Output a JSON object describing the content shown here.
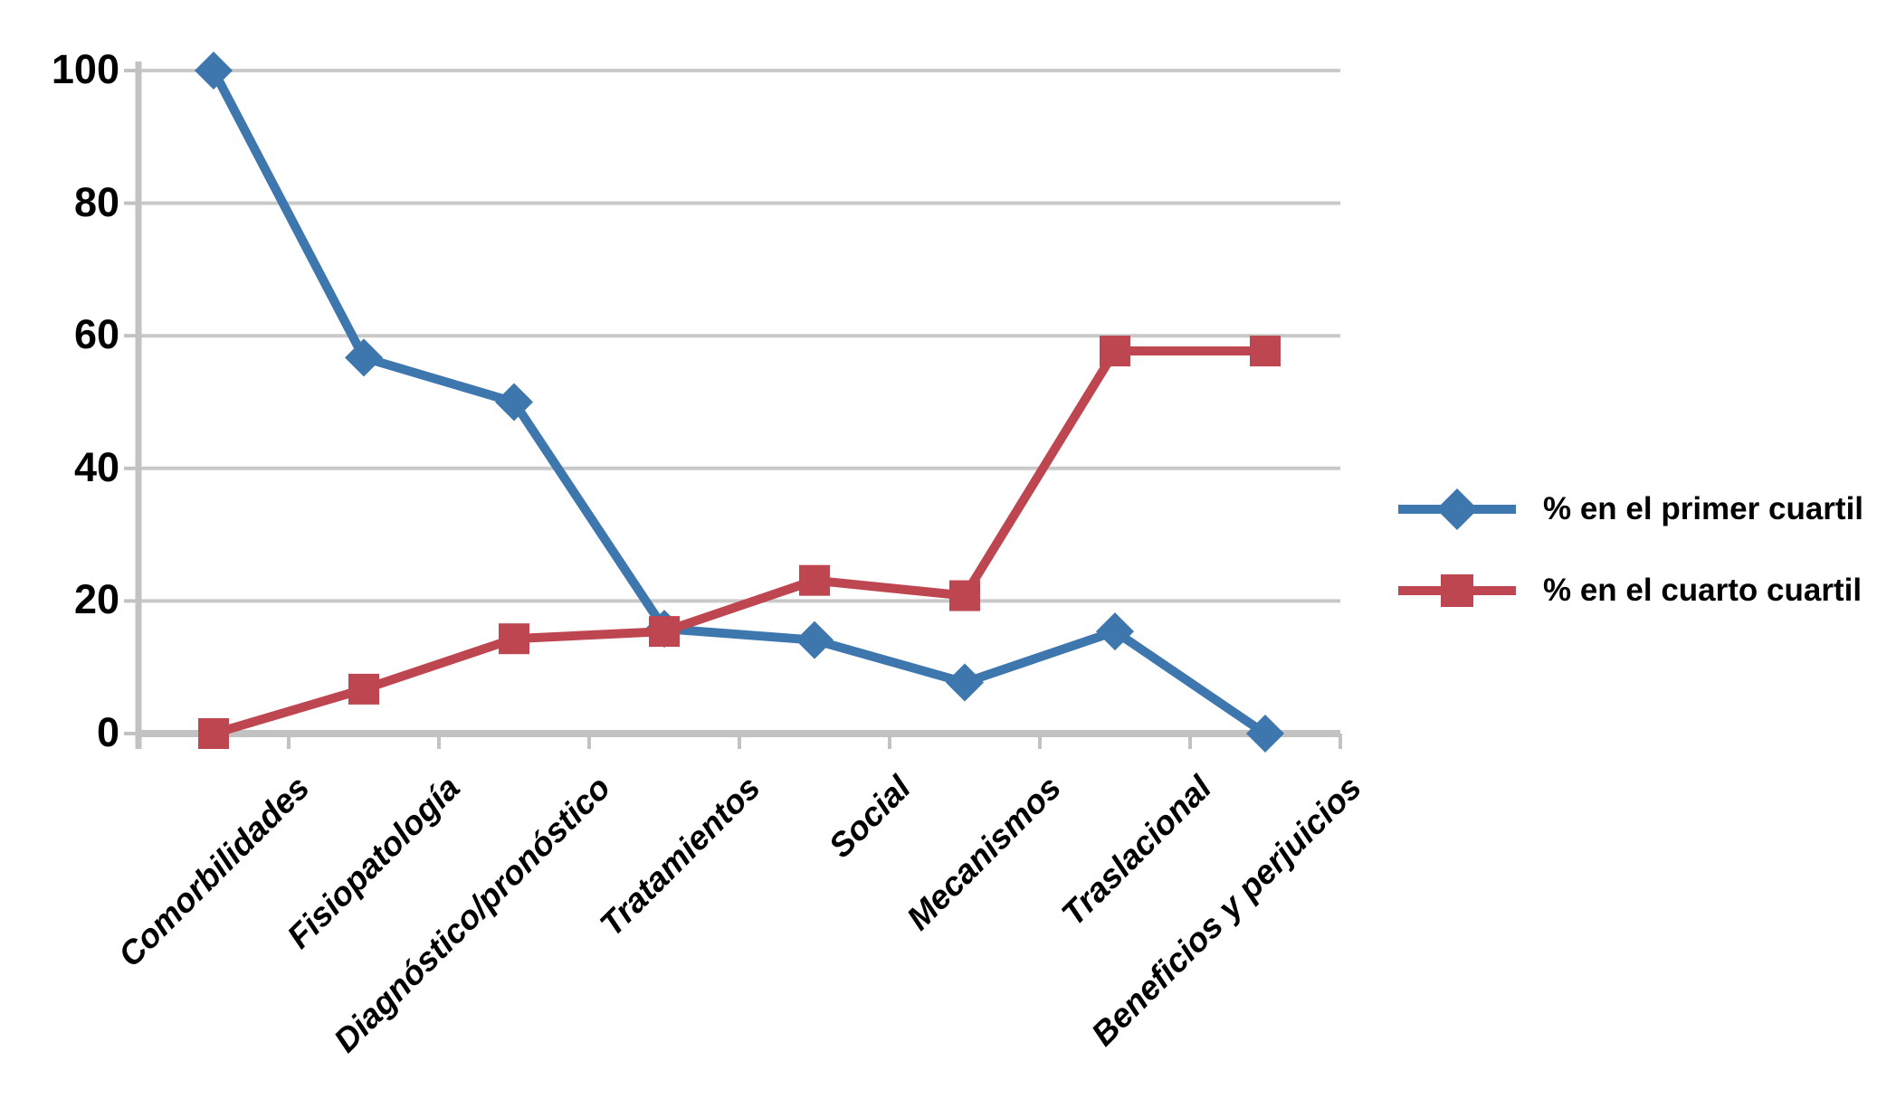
{
  "chart_data": {
    "type": "line",
    "title": "",
    "xlabel": "",
    "ylabel": "",
    "categories": [
      "Comorbilidades",
      "Fisiopatología",
      "Diagnóstico/pronóstico",
      "Tratamientos",
      "Social",
      "Mecanismos",
      "Traslacional",
      "Beneficios y perjuicios"
    ],
    "series": [
      {
        "name": "% en el primer cuartil",
        "marker": "diamond",
        "color": "#3E76AE",
        "values": [
          100,
          56.7,
          50,
          15.8,
          14.1,
          7.7,
          15.4,
          0
        ]
      },
      {
        "name": "% en el cuarto cuartil",
        "marker": "square",
        "color": "#BE4650",
        "values": [
          0,
          6.7,
          14.3,
          15.4,
          23.1,
          20.8,
          57.7,
          57.7
        ]
      }
    ],
    "ylim": [
      0,
      100
    ],
    "yticks": [
      0,
      20,
      40,
      60,
      80,
      100
    ],
    "grid": "horizontal gridlines at every y tick",
    "legend_position": "right",
    "gridline_color": "#C9C9C9",
    "axis_color": "#C2C2C2",
    "text_color": "#000000",
    "background_color": "#FFFFFF"
  }
}
